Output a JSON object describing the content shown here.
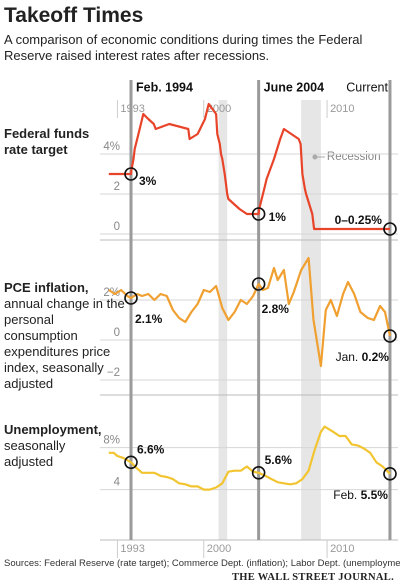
{
  "title": "Takeoff Times",
  "subtitle": "A comparison of economic conditions during times the Federal Reserve raised interest rates after recessions.",
  "markers": [
    {
      "label": "Feb. 1994",
      "x": 1994.1
    },
    {
      "label": "June 2004",
      "x": 2004.45
    },
    {
      "label": "Current",
      "x": 2015.1
    }
  ],
  "recessions": [
    [
      2001.2,
      2001.9
    ],
    [
      2007.9,
      2009.5
    ]
  ],
  "recession_label": "Recession",
  "source": "Sources: Federal Reserve (rate target); Commerce Dept. (inflation); Labor Dept. (unemployment)",
  "publisher": "THE WALL STREET JOURNAL.",
  "chart_data": [
    {
      "type": "line",
      "title": "Federal funds rate target",
      "color": "#e8442a",
      "xaxis": "top",
      "xlim": [
        1992.3,
        2015.5
      ],
      "xticks": [
        1993,
        2000,
        2010
      ],
      "ylim": [
        -0.3,
        6.7
      ],
      "yticks": [
        0,
        2,
        {
          "value": 4,
          "label": "4%"
        }
      ],
      "x": [
        1992.3,
        1994.1,
        1994.15,
        1994.3,
        1994.4,
        1994.6,
        1994.9,
        1995.1,
        1995.5,
        1995.95,
        1996.1,
        1997.2,
        1998.75,
        1998.85,
        1999.5,
        1999.7,
        1999.9,
        2000.1,
        2000.2,
        2000.4,
        2001.0,
        2001.1,
        2001.3,
        2001.4,
        2001.5,
        2001.7,
        2001.8,
        2001.9,
        2002.0,
        2002.9,
        2003.5,
        2004.45,
        2004.5,
        2004.7,
        2004.9,
        2005.1,
        2005.4,
        2005.7,
        2005.95,
        2006.2,
        2006.5,
        2007.7,
        2007.85,
        2008.0,
        2008.2,
        2008.3,
        2008.8,
        2008.95,
        2015.1
      ],
      "values": [
        3.0,
        3.0,
        3.25,
        3.75,
        4.25,
        4.75,
        5.5,
        6.0,
        5.75,
        5.5,
        5.25,
        5.5,
        5.25,
        4.75,
        5.0,
        5.25,
        5.5,
        5.75,
        6.0,
        6.5,
        6.0,
        5.0,
        4.5,
        4.0,
        3.75,
        3.0,
        2.5,
        2.0,
        1.75,
        1.25,
        1.0,
        1.0,
        1.25,
        1.75,
        2.25,
        2.75,
        3.25,
        3.75,
        4.25,
        4.75,
        5.25,
        4.75,
        4.5,
        3.0,
        2.25,
        2.0,
        1.0,
        0.25,
        0.25
      ],
      "annotations": [
        {
          "x": 1994.1,
          "y": 3,
          "label": "3%"
        },
        {
          "x": 2004.45,
          "y": 1,
          "label": "1%"
        },
        {
          "x": 2015.1,
          "y": 0.25,
          "label": "0–0.25%"
        }
      ]
    },
    {
      "type": "line",
      "title": "PCE inflation,",
      "subtitle": "annual change in the personal consumption expenditures price index, seasonally adjusted",
      "color": "#f0a030",
      "xlim": [
        1992.3,
        2015.5
      ],
      "ylim": [
        -2.75,
        3.75
      ],
      "yticks": [
        {
          "value": -2,
          "label": "−2"
        },
        0,
        {
          "value": 2,
          "label": "2%"
        }
      ],
      "x": [
        1992.3,
        1992.8,
        1993.3,
        1993.8,
        1994.1,
        1994.6,
        1995.0,
        1995.5,
        1996.0,
        1996.5,
        1997.0,
        1997.5,
        1998.0,
        1998.5,
        1999.0,
        1999.5,
        2000.0,
        2000.5,
        2001.0,
        2001.5,
        2002.0,
        2002.5,
        2003.0,
        2003.5,
        2004.0,
        2004.45,
        2004.8,
        2005.2,
        2005.7,
        2006.0,
        2006.5,
        2006.9,
        2007.3,
        2007.9,
        2008.5,
        2008.9,
        2009.5,
        2009.9,
        2010.3,
        2010.8,
        2011.3,
        2011.7,
        2012.2,
        2012.7,
        2013.3,
        2013.8,
        2014.3,
        2014.7,
        2015.1
      ],
      "values": [
        2.5,
        2.3,
        2.5,
        2.2,
        2.1,
        2.3,
        2.2,
        2.3,
        2.0,
        2.3,
        2.2,
        1.5,
        1.1,
        0.9,
        1.4,
        1.8,
        2.5,
        2.4,
        2.7,
        1.6,
        1.0,
        1.4,
        2.0,
        1.8,
        2.2,
        2.8,
        2.5,
        2.6,
        3.6,
        3.0,
        3.5,
        1.8,
        2.4,
        3.5,
        4.1,
        1.0,
        -1.3,
        1.5,
        2.0,
        1.2,
        2.3,
        2.9,
        2.3,
        1.4,
        1.1,
        1.0,
        1.7,
        1.4,
        0.2
      ],
      "annotations": [
        {
          "x": 1994.1,
          "y": 2.1,
          "label": "2.1%"
        },
        {
          "x": 2004.45,
          "y": 2.8,
          "label": "2.8%"
        },
        {
          "x": 2015.1,
          "y": 0.2,
          "prefix": "Jan.",
          "label": "0.2%"
        }
      ]
    },
    {
      "type": "line",
      "title": "Unemployment,",
      "subtitle": "seasonally adjusted",
      "color": "#f2c530",
      "xaxis": "bottom",
      "xlim": [
        1992.3,
        2015.5
      ],
      "xticks": [
        1993,
        2000,
        2010
      ],
      "ylim": [
        -0.8,
        11.1
      ],
      "yticks": [
        4,
        {
          "value": 8,
          "label": "8%"
        }
      ],
      "x": [
        1992.3,
        1992.7,
        1993.0,
        1993.5,
        1994.1,
        1994.5,
        1995.0,
        1996.0,
        1996.5,
        1997.0,
        1997.5,
        1998.0,
        1998.5,
        1999.0,
        1999.5,
        2000.0,
        2000.5,
        2001.0,
        2001.5,
        2002.0,
        2002.5,
        2003.0,
        2003.5,
        2004.0,
        2004.45,
        2005.0,
        2005.5,
        2006.0,
        2006.5,
        2007.0,
        2007.5,
        2008.0,
        2008.5,
        2009.0,
        2009.5,
        2009.8,
        2010.5,
        2011.0,
        2011.5,
        2012.0,
        2012.5,
        2013.0,
        2013.5,
        2014.0,
        2014.5,
        2015.1
      ],
      "values": [
        7.5,
        7.5,
        7.2,
        7.0,
        6.6,
        6.1,
        5.6,
        5.6,
        5.3,
        5.2,
        5.0,
        4.6,
        4.5,
        4.3,
        4.3,
        4.0,
        4.0,
        4.2,
        4.6,
        5.7,
        5.8,
        5.8,
        6.2,
        5.7,
        5.6,
        5.3,
        5.0,
        4.7,
        4.6,
        4.5,
        4.6,
        5.0,
        5.8,
        7.8,
        9.5,
        10.0,
        9.5,
        9.1,
        9.1,
        8.3,
        8.2,
        7.9,
        7.5,
        6.6,
        6.2,
        5.5
      ],
      "annotations": [
        {
          "x": 1994.1,
          "y": 6.6,
          "label": "6.6%"
        },
        {
          "x": 2004.45,
          "y": 5.6,
          "label": "5.6%"
        },
        {
          "x": 2015.1,
          "y": 5.5,
          "prefix": "Feb.",
          "label": "5.5%"
        }
      ]
    }
  ]
}
